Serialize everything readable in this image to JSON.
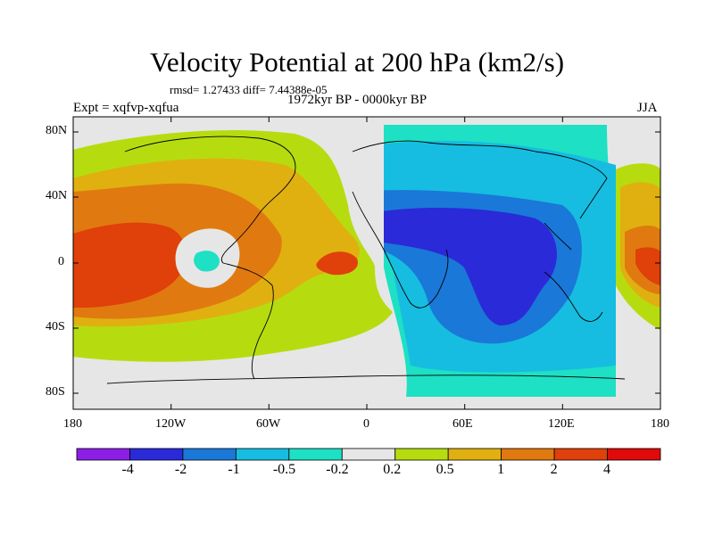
{
  "title": "Velocity Potential at 200 hPa (km2/s)",
  "stats": "rmsd= 1.27433 diff= 7.44388e-05",
  "expt": "Expt = xqfvp-xqfua",
  "period": "1972kyr BP - 0000kyr BP",
  "season": "JJA",
  "axes": {
    "y_ticks": [
      "80N",
      "40N",
      "0",
      "40S",
      "80S"
    ],
    "x_ticks": [
      "180",
      "120W",
      "60W",
      "0",
      "60E",
      "120E",
      "180"
    ]
  },
  "colorbar": {
    "labels": [
      "-4",
      "-2",
      "-1",
      "-0.5",
      "-0.2",
      "0.2",
      "0.5",
      "1",
      "2",
      "4"
    ],
    "colors": [
      "#8c1ee6",
      "#2a2ad8",
      "#1a78d8",
      "#16bde0",
      "#1ee0c4",
      "#e6e6e6",
      "#b6dc10",
      "#e0b010",
      "#e07a10",
      "#e0400a",
      "#e00a0a"
    ]
  },
  "colors": {
    "background": "#e6e6e6",
    "coast": "#000000"
  }
}
